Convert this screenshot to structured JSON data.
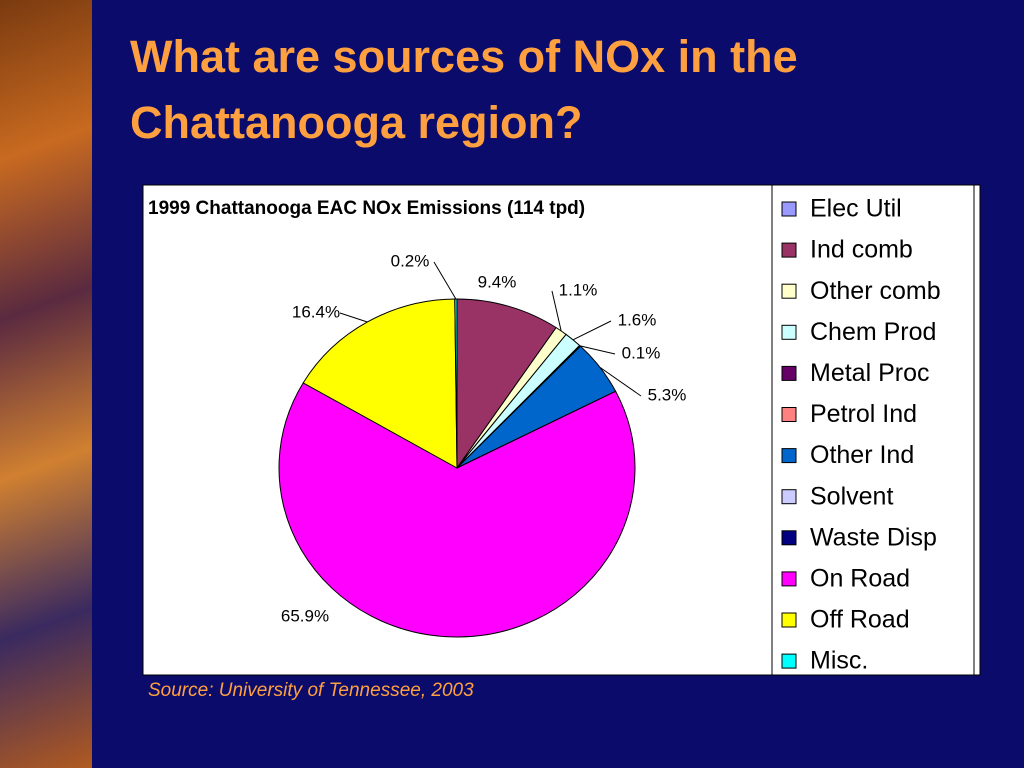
{
  "title": "What are sources of NOx in the Chattanooga region?",
  "source": "Source:  University of Tennessee, 2003",
  "chart_data": {
    "type": "pie",
    "title": "1999 Chattanooga EAC NOx Emissions (114 tpd)",
    "categories": [
      "Elec Util",
      "Ind comb",
      "Other comb",
      "Chem Prod",
      "Metal Proc",
      "Petrol Ind",
      "Other Ind",
      "Solvent",
      "Waste Disp",
      "On Road",
      "Off Road",
      "Misc."
    ],
    "values": [
      0,
      9.4,
      1.1,
      1.6,
      0,
      0.1,
      5.3,
      0,
      0,
      65.9,
      16.4,
      0.2
    ],
    "value_labels": [
      null,
      "9.4%",
      "1.1%",
      "1.6%",
      null,
      "0.1%",
      "5.3%",
      null,
      null,
      "65.9%",
      "16.4%",
      "0.2%"
    ],
    "colors": [
      "#9999ff",
      "#993366",
      "#ffffcc",
      "#ccffff",
      "#660066",
      "#ff8080",
      "#0066cc",
      "#ccccff",
      "#000080",
      "#ff00ff",
      "#ffff00",
      "#00ffff"
    ],
    "legend": "right"
  }
}
